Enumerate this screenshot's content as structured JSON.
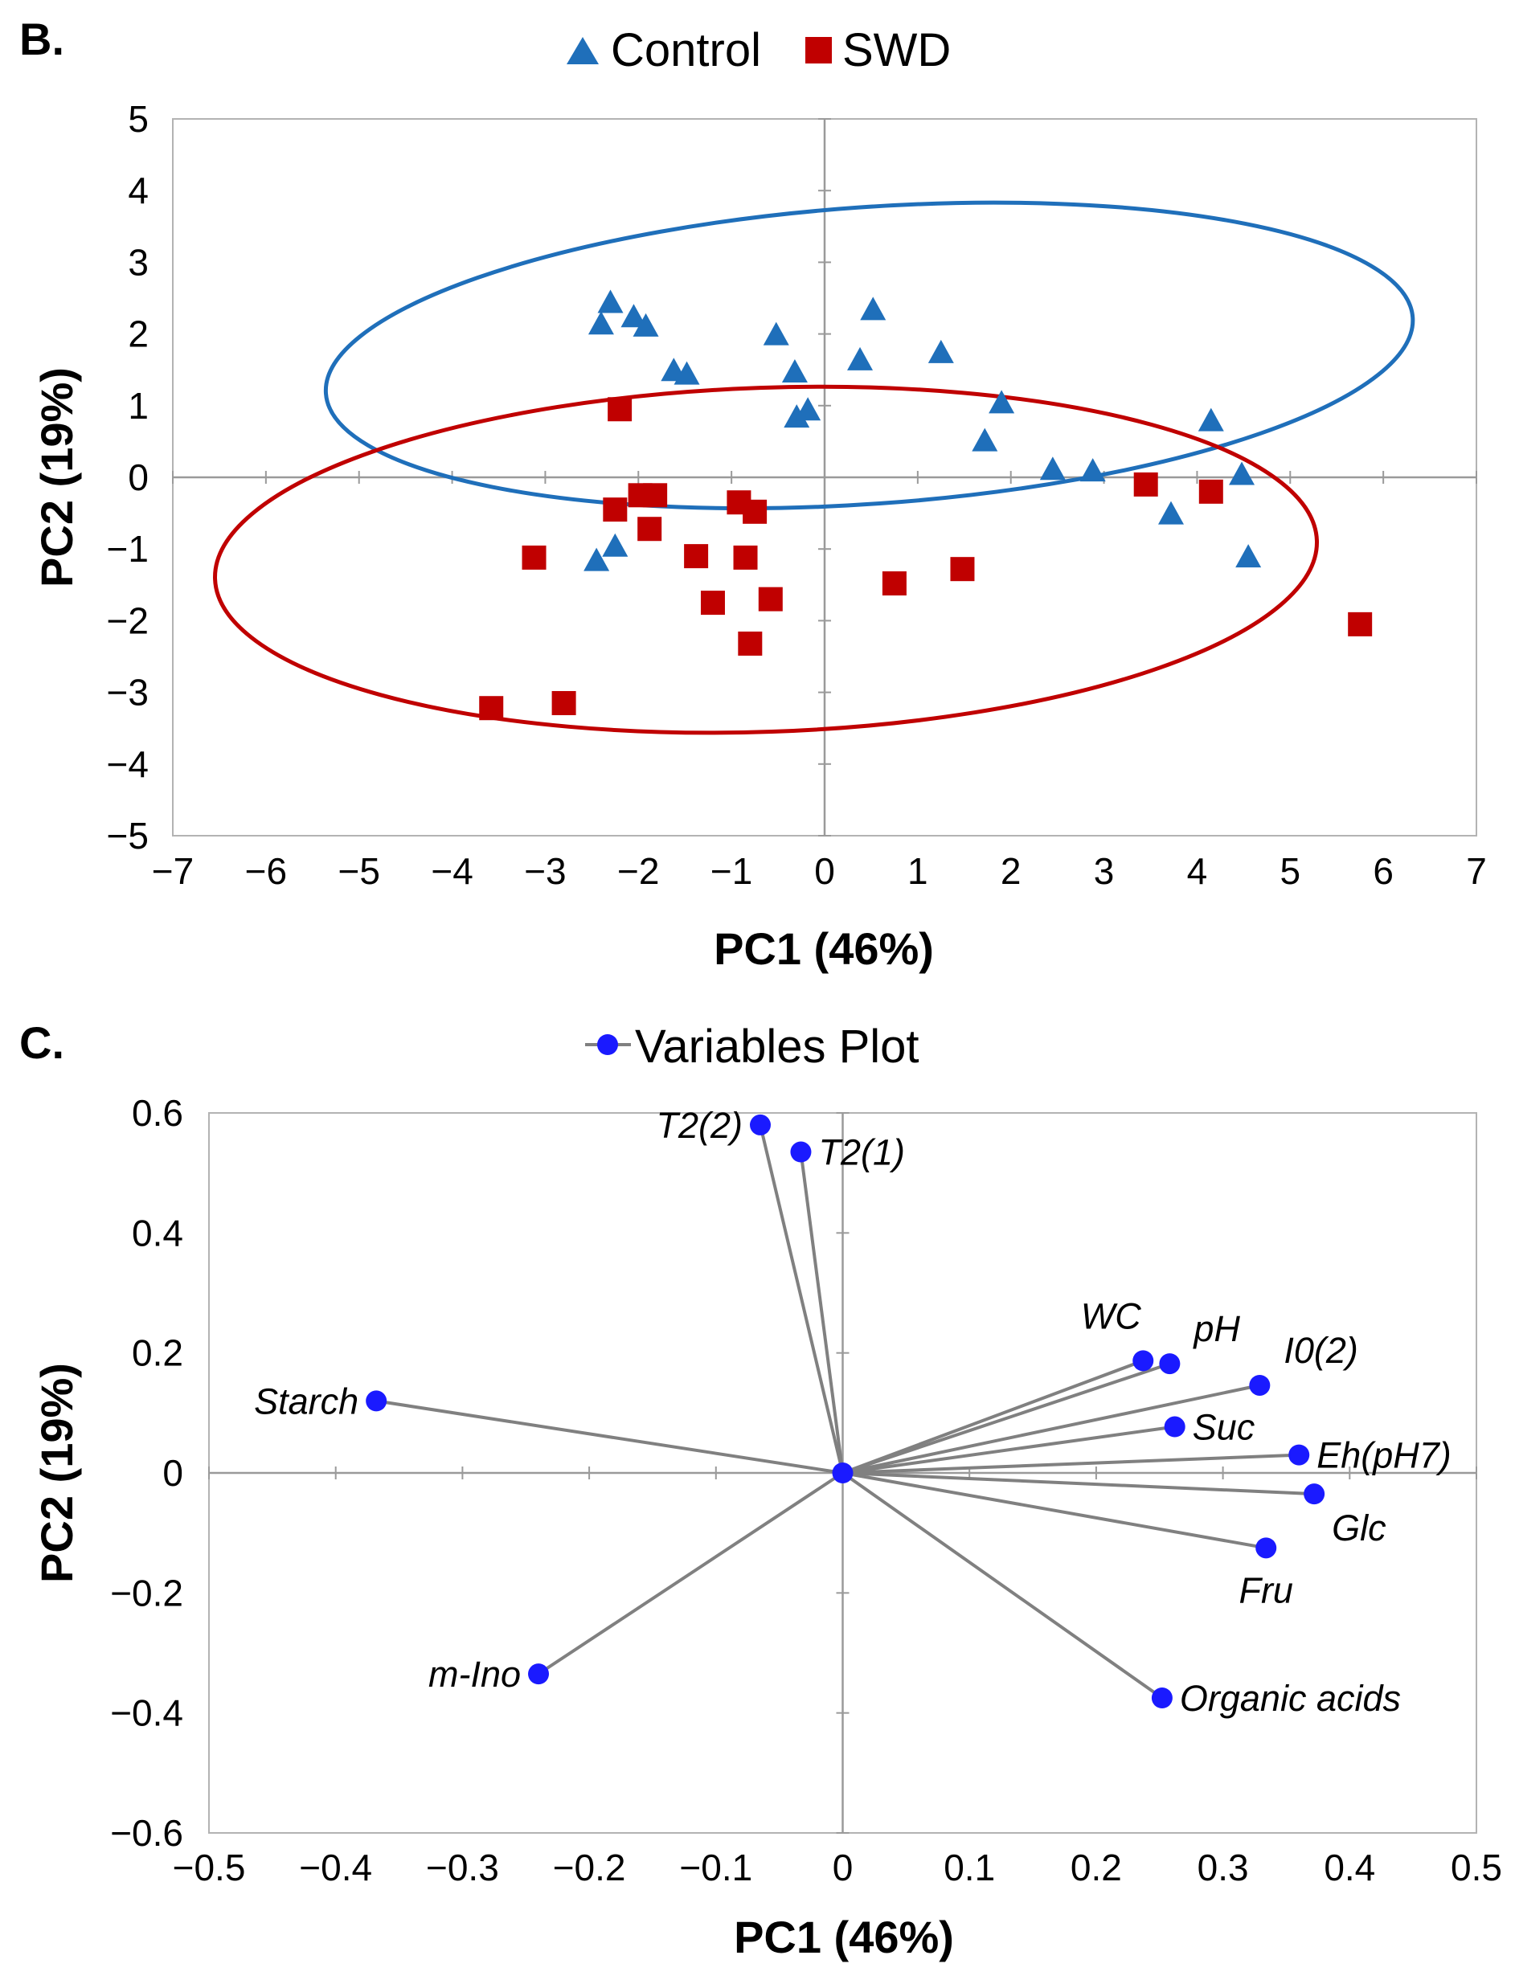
{
  "chart_data": [
    {
      "type": "scatter",
      "panel_label": "B.",
      "title": "",
      "xlabel": "PC1 (46%)",
      "ylabel": "PC2 (19%)",
      "xlim": [
        -7,
        7
      ],
      "ylim": [
        -5,
        5
      ],
      "xticks": [
        -7,
        -6,
        -5,
        -4,
        -3,
        -2,
        -1,
        0,
        1,
        2,
        3,
        4,
        5,
        6,
        7
      ],
      "yticks": [
        -5,
        -4,
        -3,
        -2,
        -1,
        0,
        1,
        2,
        3,
        4,
        5
      ],
      "tick_labels_x": [
        "−7",
        "−6",
        "−5",
        "−4",
        "−3",
        "−2",
        "−1",
        "0",
        "1",
        "2",
        "3",
        "4",
        "5",
        "6",
        "7"
      ],
      "tick_labels_y": [
        "−5",
        "−4",
        "−3",
        "−2",
        "−1",
        "0",
        "1",
        "2",
        "3",
        "4",
        "5"
      ],
      "grid": false,
      "legend_position": "top-center",
      "series": [
        {
          "name": "Control",
          "marker": "triangle",
          "color": "#1f6fba",
          "points": [
            [
              -2.3,
              2.45
            ],
            [
              -2.4,
              2.15
            ],
            [
              -2.05,
              2.25
            ],
            [
              -1.92,
              2.12
            ],
            [
              -1.62,
              1.5
            ],
            [
              -1.48,
              1.45
            ],
            [
              -0.52,
              2.0
            ],
            [
              -0.32,
              1.48
            ],
            [
              -0.3,
              0.85
            ],
            [
              -0.18,
              0.95
            ],
            [
              0.38,
              1.65
            ],
            [
              0.52,
              2.35
            ],
            [
              1.25,
              1.75
            ],
            [
              1.72,
              0.52
            ],
            [
              1.9,
              1.05
            ],
            [
              2.45,
              0.12
            ],
            [
              2.88,
              0.1
            ],
            [
              3.72,
              -0.5
            ],
            [
              4.15,
              0.8
            ],
            [
              4.48,
              0.05
            ],
            [
              4.55,
              -1.1
            ],
            [
              -2.45,
              -1.15
            ],
            [
              -2.25,
              -0.95
            ]
          ]
        },
        {
          "name": "SWD",
          "marker": "square",
          "color": "#c00000",
          "points": [
            [
              -2.2,
              0.95
            ],
            [
              -2.25,
              -0.45
            ],
            [
              -1.98,
              -0.25
            ],
            [
              -1.82,
              -0.25
            ],
            [
              -1.88,
              -0.72
            ],
            [
              -1.38,
              -1.1
            ],
            [
              -1.2,
              -1.75
            ],
            [
              -0.92,
              -0.35
            ],
            [
              -0.85,
              -1.12
            ],
            [
              -0.75,
              -0.48
            ],
            [
              -0.8,
              -2.32
            ],
            [
              -0.58,
              -1.7
            ],
            [
              -3.12,
              -1.12
            ],
            [
              -3.58,
              -3.22
            ],
            [
              -2.8,
              -3.15
            ],
            [
              0.75,
              -1.48
            ],
            [
              1.48,
              -1.28
            ],
            [
              3.45,
              -0.1
            ],
            [
              4.15,
              -0.2
            ],
            [
              5.75,
              -2.05
            ]
          ]
        }
      ],
      "ellipses": [
        {
          "series": "Control",
          "color": "#1f6fba",
          "center": [
            0.48,
            1.7
          ],
          "semi_axes": [
            5.85,
            2.07
          ],
          "rotation_deg": -4
        },
        {
          "series": "SWD",
          "color": "#c00000",
          "center": [
            -0.63,
            -1.15
          ],
          "semi_axes": [
            5.92,
            2.4
          ],
          "rotation_deg": -2
        }
      ]
    },
    {
      "type": "scatter",
      "panel_label": "C.",
      "title": "",
      "xlabel": "PC1 (46%)",
      "ylabel": "PC2 (19%)",
      "xlim": [
        -0.5,
        0.5
      ],
      "ylim": [
        -0.6,
        0.6
      ],
      "xticks": [
        -0.5,
        -0.4,
        -0.3,
        -0.2,
        -0.1,
        0,
        0.1,
        0.2,
        0.3,
        0.4,
        0.5
      ],
      "yticks": [
        -0.6,
        -0.4,
        -0.2,
        0,
        0.2,
        0.4,
        0.6
      ],
      "tick_labels_x": [
        "−0.5",
        "−0.4",
        "−0.3",
        "−0.2",
        "−0.1",
        "0",
        "0.1",
        "0.2",
        "0.3",
        "0.4",
        "0.5"
      ],
      "tick_labels_y": [
        "−0.6",
        "−0.4",
        "−0.2",
        "0",
        "0.2",
        "0.4",
        "0.6"
      ],
      "grid": false,
      "legend_position": "top-center",
      "series": [
        {
          "name": "Variables Plot",
          "marker": "circle",
          "color": "#1a1aff",
          "line_color": "#808080",
          "origin": [
            0,
            0
          ],
          "variables": [
            {
              "label": "T2(2)",
              "x": -0.065,
              "y": 0.58,
              "label_side": "left"
            },
            {
              "label": "T2(1)",
              "x": -0.033,
              "y": 0.535,
              "label_side": "right"
            },
            {
              "label": "Starch",
              "x": -0.368,
              "y": 0.12,
              "label_side": "left"
            },
            {
              "label": "WC",
              "x": 0.237,
              "y": 0.187,
              "label_side": "above"
            },
            {
              "label": "pH",
              "x": 0.258,
              "y": 0.182,
              "label_side": "above-right"
            },
            {
              "label": "I0(2)",
              "x": 0.329,
              "y": 0.146,
              "label_side": "above-right"
            },
            {
              "label": "Suc",
              "x": 0.262,
              "y": 0.077,
              "label_side": "right"
            },
            {
              "label": "Eh(pH7)",
              "x": 0.36,
              "y": 0.03,
              "label_side": "right"
            },
            {
              "label": "Glc",
              "x": 0.372,
              "y": -0.035,
              "label_side": "below-right"
            },
            {
              "label": "Fru",
              "x": 0.334,
              "y": -0.125,
              "label_side": "below"
            },
            {
              "label": "m-Ino",
              "x": -0.24,
              "y": -0.335,
              "label_side": "left"
            },
            {
              "label": "Organic acids",
              "x": 0.252,
              "y": -0.375,
              "label_side": "right"
            }
          ]
        }
      ]
    }
  ]
}
